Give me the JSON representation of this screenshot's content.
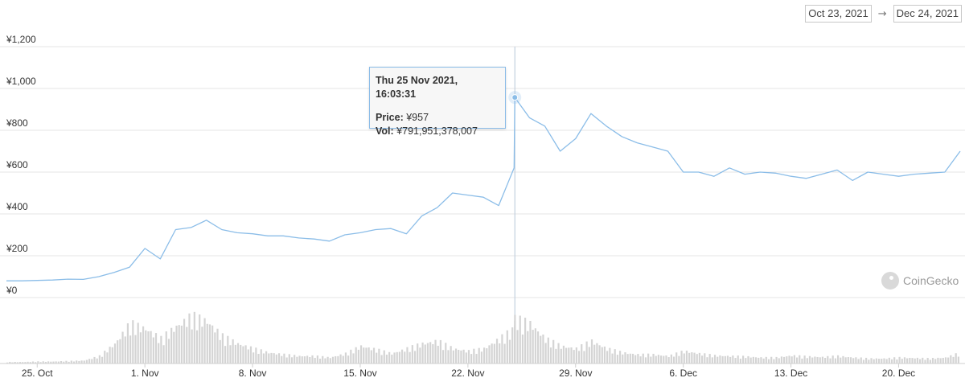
{
  "date_range": {
    "start": "Oct 23, 2021",
    "end": "Dec 24, 2021",
    "arrow": "→"
  },
  "tooltip": {
    "title": "Thu 25 Nov 2021, 16:03:31",
    "price_label": "Price:",
    "price_value": "¥957",
    "vol_label": "Vol:",
    "vol_value": "¥791,951,378,007"
  },
  "watermark": "CoinGecko",
  "colors": {
    "line": "#8bbde8",
    "volume": "#d4d4d4",
    "grid": "#e6e6e6",
    "crosshair": "#b8c8d8"
  },
  "chart_data": {
    "type": "line",
    "title": "",
    "xlabel": "",
    "ylabel": "",
    "ylim": [
      0,
      1200
    ],
    "y_ticks": [
      "¥0",
      "¥200",
      "¥400",
      "¥600",
      "¥800",
      "¥1,000",
      "¥1,200"
    ],
    "y_tick_values": [
      0,
      200,
      400,
      600,
      800,
      1000,
      1200
    ],
    "xlim": [
      "2021-10-23",
      "2021-12-24"
    ],
    "x_ticks": [
      {
        "label": "25. Oct",
        "date": "2021-10-25"
      },
      {
        "label": "1. Nov",
        "date": "2021-11-01"
      },
      {
        "label": "8. Nov",
        "date": "2021-11-08"
      },
      {
        "label": "15. Nov",
        "date": "2021-11-15"
      },
      {
        "label": "22. Nov",
        "date": "2021-11-22"
      },
      {
        "label": "29. Nov",
        "date": "2021-11-29"
      },
      {
        "label": "6. Dec",
        "date": "2021-12-06"
      },
      {
        "label": "13. Dec",
        "date": "2021-12-13"
      },
      {
        "label": "20. Dec",
        "date": "2021-12-20"
      }
    ],
    "grid": true,
    "highlight": {
      "date": "2021-11-25",
      "y": 957
    },
    "series": [
      {
        "values": [
          [
            "2021-10-23",
            80
          ],
          [
            "2021-10-24",
            80
          ],
          [
            "2021-10-25",
            82
          ],
          [
            "2021-10-26",
            84
          ],
          [
            "2021-10-27",
            88
          ],
          [
            "2021-10-28",
            87
          ],
          [
            "2021-10-29",
            100
          ],
          [
            "2021-10-30",
            120
          ],
          [
            "2021-10-31",
            145
          ],
          [
            "2021-11-01",
            235
          ],
          [
            "2021-11-02",
            185
          ],
          [
            "2021-11-03",
            325
          ],
          [
            "2021-11-04",
            335
          ],
          [
            "2021-11-05",
            370
          ],
          [
            "2021-11-06",
            325
          ],
          [
            "2021-11-07",
            310
          ],
          [
            "2021-11-08",
            305
          ],
          [
            "2021-11-09",
            295
          ],
          [
            "2021-11-10",
            295
          ],
          [
            "2021-11-11",
            285
          ],
          [
            "2021-11-12",
            280
          ],
          [
            "2021-11-13",
            270
          ],
          [
            "2021-11-14",
            300
          ],
          [
            "2021-11-15",
            310
          ],
          [
            "2021-11-16",
            325
          ],
          [
            "2021-11-17",
            330
          ],
          [
            "2021-11-18",
            305
          ],
          [
            "2021-11-19",
            390
          ],
          [
            "2021-11-20",
            430
          ],
          [
            "2021-11-21",
            500
          ],
          [
            "2021-11-22",
            490
          ],
          [
            "2021-11-23",
            480
          ],
          [
            "2021-11-24",
            440
          ],
          [
            "2021-11-25",
            620
          ],
          [
            "2021-11-25",
            957
          ],
          [
            "2021-11-26",
            860
          ],
          [
            "2021-11-27",
            820
          ],
          [
            "2021-11-28",
            700
          ],
          [
            "2021-11-29",
            760
          ],
          [
            "2021-11-30",
            880
          ],
          [
            "2021-12-01",
            820
          ],
          [
            "2021-12-02",
            770
          ],
          [
            "2021-12-03",
            740
          ],
          [
            "2021-12-04",
            720
          ],
          [
            "2021-12-05",
            700
          ],
          [
            "2021-12-06",
            600
          ],
          [
            "2021-12-07",
            600
          ],
          [
            "2021-12-08",
            580
          ],
          [
            "2021-12-09",
            620
          ],
          [
            "2021-12-10",
            590
          ],
          [
            "2021-12-11",
            600
          ],
          [
            "2021-12-12",
            595
          ],
          [
            "2021-12-13",
            580
          ],
          [
            "2021-12-14",
            570
          ],
          [
            "2021-12-15",
            590
          ],
          [
            "2021-12-16",
            610
          ],
          [
            "2021-12-17",
            560
          ],
          [
            "2021-12-18",
            600
          ],
          [
            "2021-12-19",
            590
          ],
          [
            "2021-12-20",
            580
          ],
          [
            "2021-12-21",
            590
          ],
          [
            "2021-12-22",
            595
          ],
          [
            "2021-12-23",
            600
          ],
          [
            "2021-12-24",
            700
          ]
        ]
      }
    ],
    "volume_bars": {
      "values": [
        [
          "2021-10-23",
          0.03
        ],
        [
          "2021-10-24",
          0.03
        ],
        [
          "2021-10-25",
          0.04
        ],
        [
          "2021-10-26",
          0.04
        ],
        [
          "2021-10-27",
          0.05
        ],
        [
          "2021-10-28",
          0.06
        ],
        [
          "2021-10-29",
          0.15
        ],
        [
          "2021-10-30",
          0.4
        ],
        [
          "2021-10-31",
          0.8
        ],
        [
          "2021-11-01",
          0.7
        ],
        [
          "2021-11-02",
          0.5
        ],
        [
          "2021-11-03",
          0.75
        ],
        [
          "2021-11-04",
          0.95
        ],
        [
          "2021-11-05",
          0.85
        ],
        [
          "2021-11-06",
          0.55
        ],
        [
          "2021-11-07",
          0.4
        ],
        [
          "2021-11-08",
          0.3
        ],
        [
          "2021-11-09",
          0.22
        ],
        [
          "2021-11-10",
          0.18
        ],
        [
          "2021-11-11",
          0.15
        ],
        [
          "2021-11-12",
          0.15
        ],
        [
          "2021-11-13",
          0.12
        ],
        [
          "2021-11-14",
          0.2
        ],
        [
          "2021-11-15",
          0.35
        ],
        [
          "2021-11-16",
          0.28
        ],
        [
          "2021-11-17",
          0.2
        ],
        [
          "2021-11-18",
          0.3
        ],
        [
          "2021-11-19",
          0.4
        ],
        [
          "2021-11-20",
          0.45
        ],
        [
          "2021-11-21",
          0.3
        ],
        [
          "2021-11-22",
          0.25
        ],
        [
          "2021-11-23",
          0.3
        ],
        [
          "2021-11-24",
          0.5
        ],
        [
          "2021-11-25",
          0.7
        ],
        [
          "2021-11-25",
          0.9
        ],
        [
          "2021-11-26",
          0.8
        ],
        [
          "2021-11-27",
          0.5
        ],
        [
          "2021-11-28",
          0.35
        ],
        [
          "2021-11-29",
          0.3
        ],
        [
          "2021-11-30",
          0.45
        ],
        [
          "2021-12-01",
          0.3
        ],
        [
          "2021-12-02",
          0.22
        ],
        [
          "2021-12-03",
          0.18
        ],
        [
          "2021-12-04",
          0.18
        ],
        [
          "2021-12-05",
          0.15
        ],
        [
          "2021-12-06",
          0.25
        ],
        [
          "2021-12-07",
          0.2
        ],
        [
          "2021-12-08",
          0.16
        ],
        [
          "2021-12-09",
          0.15
        ],
        [
          "2021-12-10",
          0.14
        ],
        [
          "2021-12-11",
          0.12
        ],
        [
          "2021-12-12",
          0.12
        ],
        [
          "2021-12-13",
          0.16
        ],
        [
          "2021-12-14",
          0.14
        ],
        [
          "2021-12-15",
          0.13
        ],
        [
          "2021-12-16",
          0.15
        ],
        [
          "2021-12-17",
          0.12
        ],
        [
          "2021-12-18",
          0.1
        ],
        [
          "2021-12-19",
          0.1
        ],
        [
          "2021-12-20",
          0.12
        ],
        [
          "2021-12-21",
          0.11
        ],
        [
          "2021-12-22",
          0.1
        ],
        [
          "2021-12-23",
          0.12
        ],
        [
          "2021-12-24",
          0.22
        ]
      ]
    }
  }
}
